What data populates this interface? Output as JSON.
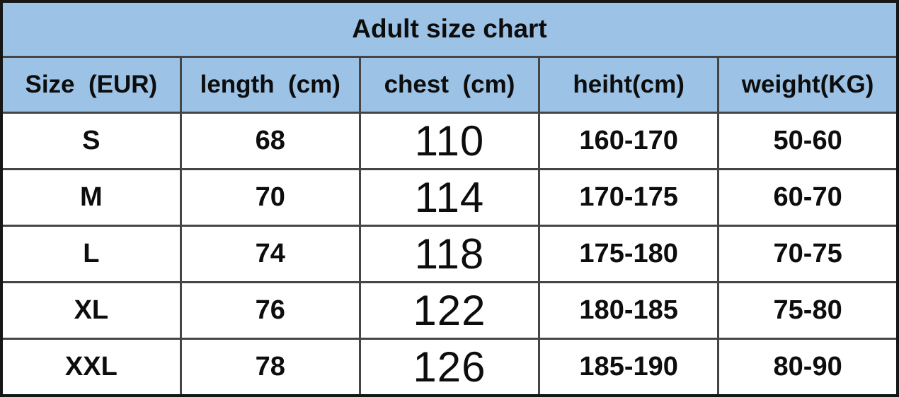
{
  "chart_data": {
    "type": "table",
    "title": "Adult size chart",
    "columns": [
      "Size  (EUR)",
      "length  (cm)",
      "chest  (cm)",
      "heiht(cm)",
      "weight(KG)"
    ],
    "rows": [
      [
        "S",
        "68",
        "110",
        "160-170",
        "50-60"
      ],
      [
        "M",
        "70",
        "114",
        "170-175",
        "60-70"
      ],
      [
        "L",
        "74",
        "118",
        "175-180",
        "70-75"
      ],
      [
        "XL",
        "76",
        "122",
        "180-185",
        "75-80"
      ],
      [
        "XXL",
        "78",
        "126",
        "185-190",
        "80-90"
      ]
    ],
    "notes": {
      "chest_column_style": "larger light-weight digits",
      "header_typo": "heiht(cm) appears as-is in source"
    }
  },
  "colors": {
    "header_bg": "#9cc2e6",
    "outer_border": "#161616",
    "grid_border": "#454545",
    "text": "#0d0d0d",
    "row_bg": "#ffffff"
  }
}
